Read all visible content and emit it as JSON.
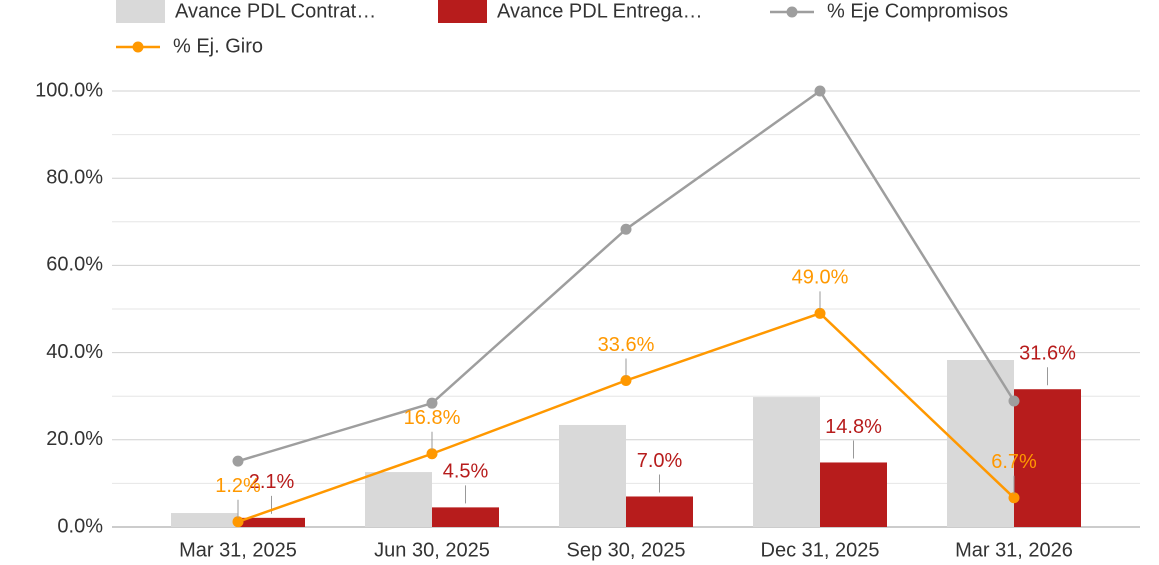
{
  "chart_data": {
    "type": "combo",
    "categories": [
      "Mar 31, 2025",
      "Jun 30, 2025",
      "Sep 30, 2025",
      "Dec 31, 2025",
      "Mar 31, 2026"
    ],
    "series": [
      {
        "name": "Avance PDL Contrat…",
        "type": "bar",
        "color": "#d9d9d9",
        "values": [
          3.2,
          12.6,
          23.4,
          29.8,
          38.3
        ]
      },
      {
        "name": "Avance PDL Entrega…",
        "type": "bar",
        "color": "#b71c1c",
        "values": [
          2.1,
          4.5,
          7.0,
          14.8,
          31.6
        ],
        "value_labels": [
          "2.1%",
          "4.5%",
          "7.0%",
          "14.8%",
          "31.6%"
        ]
      },
      {
        "name": "% Eje Compromisos",
        "type": "line",
        "color": "#9e9e9e",
        "values": [
          15.1,
          28.4,
          68.3,
          100,
          28.9
        ]
      },
      {
        "name": "% Ej. Giro",
        "type": "line",
        "color": "#ff9800",
        "values": [
          1.2,
          16.8,
          33.6,
          49.0,
          6.7
        ],
        "value_labels": [
          "1.2%",
          "16.8%",
          "33.6%",
          "49.0%",
          "6.7%"
        ]
      }
    ],
    "ylim": [
      0,
      100
    ],
    "yticks": [
      {
        "value": 0,
        "label": "0.0%"
      },
      {
        "value": 20,
        "label": "20.0%"
      },
      {
        "value": 40,
        "label": "40.0%"
      },
      {
        "value": 60,
        "label": "60.0%"
      },
      {
        "value": 80,
        "label": "80.0%"
      },
      {
        "value": 100,
        "label": "100.0%"
      }
    ],
    "grid": true,
    "minor_grid": true,
    "legend": "top"
  }
}
